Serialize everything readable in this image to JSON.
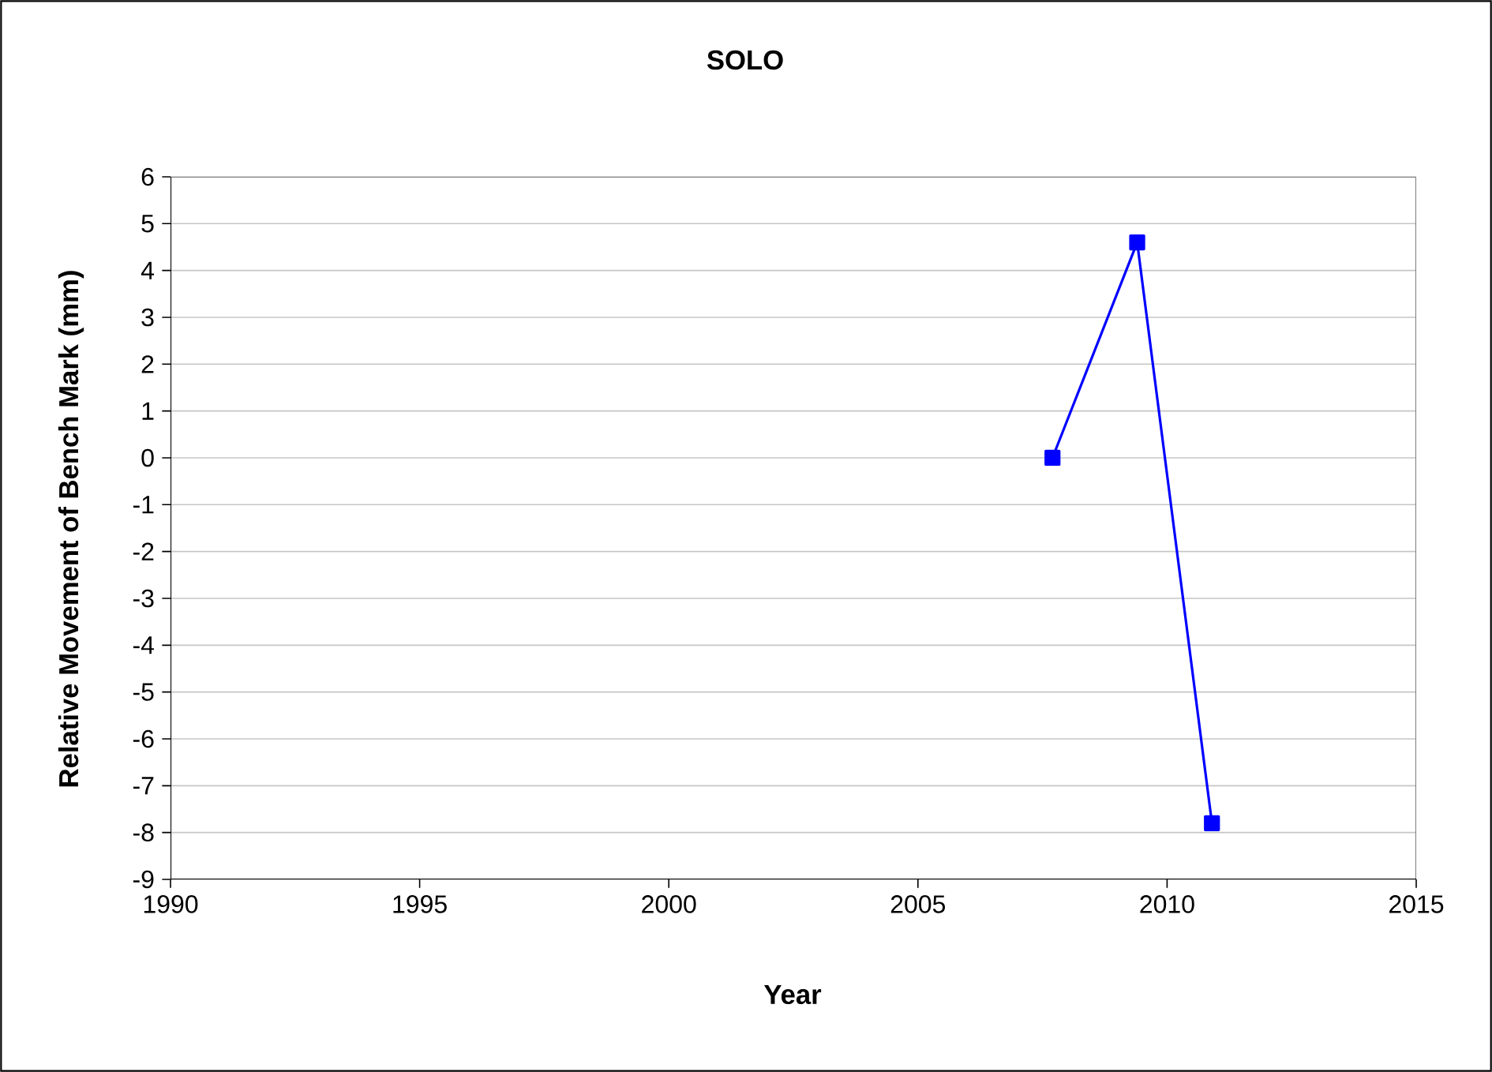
{
  "chart_data": {
    "type": "line",
    "title": "SOLO",
    "xlabel": "Year",
    "ylabel": "Relative Movement of Bench Mark (mm)",
    "x": [
      2007.7,
      2009.4,
      2010.9
    ],
    "series": [
      {
        "color": "#0000ff",
        "values": [
          0,
          4.6,
          -7.8
        ]
      }
    ],
    "xlim": [
      1990,
      2015
    ],
    "xticks": [
      1990,
      1995,
      2000,
      2005,
      2010,
      2015
    ],
    "ylim": [
      -9,
      6
    ],
    "yticks": [
      -9,
      -8,
      -7,
      -6,
      -5,
      -4,
      -3,
      -2,
      -1,
      0,
      1,
      2,
      3,
      4,
      5,
      6
    ],
    "grid": "y",
    "marker": "square",
    "line_style": "solid"
  }
}
